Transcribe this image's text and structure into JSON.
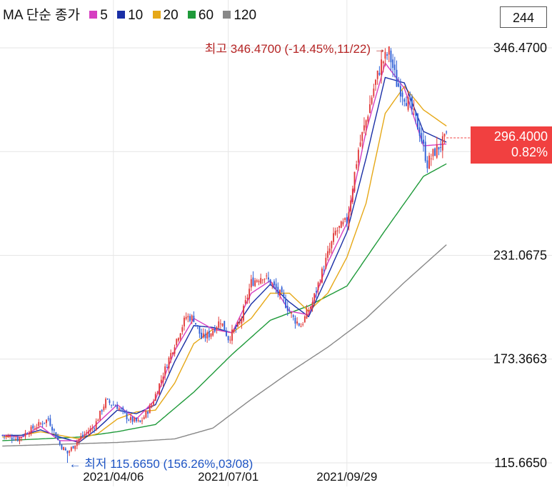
{
  "legend": {
    "title": "MA 단순 종가",
    "items": [
      {
        "label": "5",
        "color": "#d63fc1"
      },
      {
        "label": "10",
        "color": "#1a2fa6"
      },
      {
        "label": "20",
        "color": "#e6a817"
      },
      {
        "label": "60",
        "color": "#1f9a3a"
      },
      {
        "label": "120",
        "color": "#888888"
      }
    ]
  },
  "count_box": "244",
  "current_price": {
    "value": "296.4000",
    "change": "0.82%",
    "color": "#f14040"
  },
  "annotations": {
    "high_label": "최고 346.4700 (-14.45%,11/22) →",
    "low_label": "← 최저 115.6650 (156.26%,03/08)",
    "high_color": "#b52424",
    "low_color": "#1f55c4"
  },
  "chart_data": {
    "type": "candlestick",
    "ylim": [
      115.665,
      346.47
    ],
    "y_ticks": [
      "346.4700",
      "231.0675",
      "173.3663",
      "115.6650"
    ],
    "x_ticks": [
      "2021/04/06",
      "2021/07/01",
      "2021/09/29"
    ],
    "up_color": "#e23b3b",
    "down_color": "#2f5fd6",
    "grid": true,
    "candle_count": 244,
    "close_anchors": [
      [
        0,
        131
      ],
      [
        8,
        129
      ],
      [
        16,
        135
      ],
      [
        24,
        140
      ],
      [
        30,
        126
      ],
      [
        34,
        121
      ],
      [
        40,
        129
      ],
      [
        48,
        136
      ],
      [
        54,
        150
      ],
      [
        60,
        147
      ],
      [
        66,
        140
      ],
      [
        72,
        138
      ],
      [
        78,
        148
      ],
      [
        84,
        165
      ],
      [
        90,
        182
      ],
      [
        96,
        197
      ],
      [
        100,
        196
      ],
      [
        104,
        185
      ],
      [
        108,
        187
      ],
      [
        114,
        195
      ],
      [
        118,
        185
      ],
      [
        124,
        193
      ],
      [
        130,
        216
      ],
      [
        136,
        220
      ],
      [
        140,
        216
      ],
      [
        146,
        208
      ],
      [
        152,
        196
      ],
      [
        156,
        192
      ],
      [
        162,
        205
      ],
      [
        168,
        225
      ],
      [
        174,
        244
      ],
      [
        180,
        250
      ],
      [
        186,
        290
      ],
      [
        190,
        306
      ],
      [
        194,
        324
      ],
      [
        198,
        338
      ],
      [
        202,
        344
      ],
      [
        206,
        327
      ],
      [
        210,
        320
      ],
      [
        214,
        312
      ],
      [
        218,
        300
      ],
      [
        222,
        282
      ],
      [
        226,
        289
      ],
      [
        232,
        296.4
      ]
    ],
    "ma_5": [
      [
        0,
        131
      ],
      [
        10,
        130
      ],
      [
        20,
        136
      ],
      [
        30,
        128
      ],
      [
        40,
        128
      ],
      [
        50,
        138
      ],
      [
        60,
        148
      ],
      [
        70,
        140
      ],
      [
        80,
        151
      ],
      [
        90,
        178
      ],
      [
        100,
        196
      ],
      [
        110,
        190
      ],
      [
        120,
        188
      ],
      [
        130,
        210
      ],
      [
        140,
        217
      ],
      [
        150,
        200
      ],
      [
        160,
        198
      ],
      [
        170,
        227
      ],
      [
        180,
        249
      ],
      [
        190,
        300
      ],
      [
        200,
        338
      ],
      [
        210,
        324
      ],
      [
        220,
        292
      ],
      [
        232,
        293
      ]
    ],
    "ma_10": [
      [
        0,
        131
      ],
      [
        10,
        131
      ],
      [
        20,
        134
      ],
      [
        30,
        130
      ],
      [
        40,
        127
      ],
      [
        50,
        135
      ],
      [
        60,
        145
      ],
      [
        70,
        143
      ],
      [
        80,
        148
      ],
      [
        90,
        172
      ],
      [
        100,
        192
      ],
      [
        110,
        191
      ],
      [
        120,
        188
      ],
      [
        130,
        204
      ],
      [
        140,
        215
      ],
      [
        150,
        205
      ],
      [
        160,
        197
      ],
      [
        170,
        220
      ],
      [
        180,
        244
      ],
      [
        190,
        285
      ],
      [
        200,
        330
      ],
      [
        210,
        327
      ],
      [
        220,
        300
      ],
      [
        232,
        294
      ]
    ],
    "ma_20": [
      [
        0,
        130
      ],
      [
        10,
        131
      ],
      [
        20,
        133
      ],
      [
        30,
        131
      ],
      [
        40,
        129
      ],
      [
        50,
        132
      ],
      [
        60,
        140
      ],
      [
        70,
        144
      ],
      [
        80,
        145
      ],
      [
        90,
        160
      ],
      [
        100,
        182
      ],
      [
        110,
        190
      ],
      [
        120,
        188
      ],
      [
        130,
        196
      ],
      [
        140,
        210
      ],
      [
        150,
        210
      ],
      [
        160,
        200
      ],
      [
        170,
        210
      ],
      [
        180,
        230
      ],
      [
        190,
        260
      ],
      [
        200,
        310
      ],
      [
        210,
        325
      ],
      [
        220,
        312
      ],
      [
        232,
        303
      ]
    ],
    "ma_60": [
      [
        0,
        128
      ],
      [
        20,
        129
      ],
      [
        40,
        130
      ],
      [
        60,
        133
      ],
      [
        80,
        137
      ],
      [
        100,
        155
      ],
      [
        120,
        176
      ],
      [
        140,
        195
      ],
      [
        160,
        203
      ],
      [
        180,
        214
      ],
      [
        200,
        245
      ],
      [
        220,
        275
      ],
      [
        232,
        282
      ]
    ],
    "ma_120": [
      [
        0,
        125
      ],
      [
        30,
        126
      ],
      [
        60,
        127
      ],
      [
        90,
        129
      ],
      [
        110,
        135
      ],
      [
        130,
        151
      ],
      [
        150,
        166
      ],
      [
        170,
        180
      ],
      [
        190,
        196
      ],
      [
        210,
        216
      ],
      [
        232,
        237
      ]
    ],
    "high_point": {
      "index": 202,
      "value": 346.47
    },
    "low_point": {
      "index": 34,
      "value": 115.665
    }
  }
}
